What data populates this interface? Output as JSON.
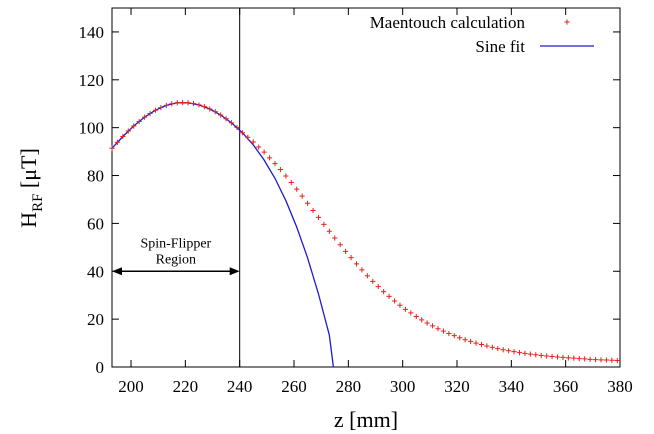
{
  "chart_data": {
    "type": "scatter",
    "xlabel": "z [mm]",
    "ylabel_main": "H",
    "ylabel_sub": "RF",
    "ylabel_unit": " [μT]",
    "xlim": [
      193,
      380
    ],
    "ylim": [
      0,
      150
    ],
    "xticks": [
      200,
      220,
      240,
      260,
      280,
      300,
      320,
      340,
      360,
      380
    ],
    "yticks": [
      0,
      20,
      40,
      60,
      80,
      100,
      120,
      140
    ],
    "grid": false,
    "legend_position": "top-right",
    "series": [
      {
        "name": "Maentouch calculation",
        "kind": "markers",
        "marker": "+",
        "color": "#e8221b",
        "x": [
          193,
          195,
          197,
          199,
          201,
          203,
          205,
          207,
          209,
          211,
          213,
          215,
          217,
          219,
          221,
          223,
          225,
          227,
          229,
          231,
          233,
          235,
          237,
          239,
          241,
          243,
          245,
          247,
          249,
          251,
          253,
          255,
          257,
          259,
          261,
          263,
          265,
          267,
          269,
          271,
          273,
          275,
          277,
          279,
          281,
          283,
          285,
          287,
          289,
          291,
          293,
          295,
          297,
          299,
          301,
          303,
          305,
          307,
          309,
          311,
          313,
          315,
          317,
          319,
          321,
          323,
          325,
          327,
          329,
          331,
          333,
          335,
          337,
          339,
          341,
          343,
          345,
          347,
          349,
          351,
          353,
          355,
          357,
          359,
          361,
          363,
          365,
          367,
          369,
          371,
          373,
          375,
          377,
          379
        ],
        "y": [
          91.4,
          93.9,
          96.3,
          98.6,
          100.7,
          102.6,
          104.4,
          105.9,
          107.3,
          108.4,
          109.3,
          110.0,
          110.4,
          110.5,
          110.4,
          110.1,
          109.5,
          108.8,
          107.8,
          106.7,
          105.3,
          103.7,
          102.0,
          100.1,
          97.9,
          96.0,
          94.0,
          91.9,
          89.8,
          87.4,
          85.0,
          82.5,
          79.8,
          77.1,
          74.3,
          71.4,
          68.4,
          65.4,
          62.5,
          59.6,
          56.7,
          53.9,
          51.1,
          48.3,
          45.7,
          43.1,
          40.6,
          38.1,
          35.8,
          33.6,
          31.5,
          29.5,
          27.6,
          25.8,
          24.1,
          22.6,
          21.1,
          19.7,
          18.4,
          17.2,
          16.0,
          15.0,
          14.0,
          13.1,
          12.2,
          11.4,
          10.7,
          10.0,
          9.4,
          8.8,
          8.2,
          7.7,
          7.2,
          6.8,
          6.4,
          6.0,
          5.7,
          5.4,
          5.1,
          4.8,
          4.6,
          4.4,
          4.2,
          4.0,
          3.8,
          3.7,
          3.5,
          3.4,
          3.2,
          3.1,
          3.0,
          2.9,
          2.8,
          2.7
        ]
      },
      {
        "name": "Sine fit",
        "kind": "line",
        "color": "#1c1cd0",
        "x": [
          193,
          197,
          201,
          205,
          209,
          213,
          217,
          221,
          225,
          229,
          233,
          237,
          241,
          245,
          249,
          253,
          257,
          261,
          265,
          269,
          273,
          274.5
        ],
        "y": [
          91.4,
          96.3,
          100.7,
          104.4,
          107.3,
          109.3,
          110.4,
          110.4,
          109.5,
          107.8,
          105.3,
          102.0,
          97.9,
          92.8,
          86.5,
          78.8,
          69.5,
          58.5,
          45.6,
          30.5,
          13.4,
          0
        ]
      }
    ],
    "annotations": {
      "vline_x": 240,
      "region_label_line1": "Spin-Flipper",
      "region_label_line2": "Region",
      "region_start": 193,
      "region_end": 240,
      "arrow_y": 40
    }
  }
}
